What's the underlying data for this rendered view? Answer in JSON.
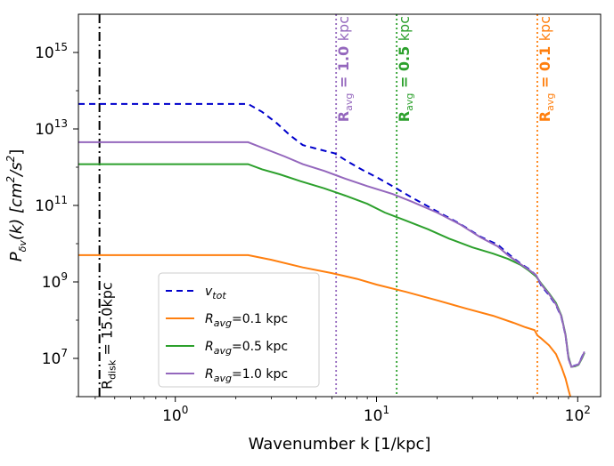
{
  "chart_data": {
    "type": "line",
    "title": "",
    "xscale": "log",
    "yscale": "log",
    "xlim": [
      0.33,
      130
    ],
    "ylim": [
      1000000.0,
      1e+16
    ],
    "x_ticks": [
      {
        "value": 1,
        "base": "10",
        "exp": "0"
      },
      {
        "value": 10,
        "base": "10",
        "exp": "1"
      },
      {
        "value": 100,
        "base": "10",
        "exp": "2"
      }
    ],
    "y_ticks": [
      {
        "value": 10000000.0,
        "base": "10",
        "exp": "7"
      },
      {
        "value": 1000000000.0,
        "base": "10",
        "exp": "9"
      },
      {
        "value": 100000000000.0,
        "base": "10",
        "exp": "11"
      },
      {
        "value": 10000000000000.0,
        "base": "10",
        "exp": "13"
      },
      {
        "value": 1000000000000000.0,
        "base": "10",
        "exp": "15"
      }
    ],
    "xlabel": "Wavenumber k [1/kpc]",
    "ylabel": {
      "main": "P",
      "sub": "δv",
      "rest": "(k) [cm",
      "sup": "2",
      "rest2": "/s",
      "sup2": "2",
      "end": "]"
    },
    "series": [
      {
        "name": "v_tot",
        "legend": {
          "main": "v",
          "sub": "tot",
          "rest": ""
        },
        "color": "#0000cc",
        "dash": "7,5",
        "points": [
          [
            0.33,
            45000000000000.0
          ],
          [
            2.3,
            45000000000000.0
          ],
          [
            2.7,
            28000000000000.0
          ],
          [
            3.2,
            14000000000000.0
          ],
          [
            3.7,
            7000000000000.0
          ],
          [
            4.3,
            3800000000000.0
          ],
          [
            5.2,
            2900000000000.0
          ],
          [
            6.2,
            2300000000000.0
          ],
          [
            7.2,
            1400000000000.0
          ],
          [
            8.5,
            850000000000.0
          ],
          [
            10,
            550000000000.0
          ],
          [
            12,
            320000000000.0
          ],
          [
            15,
            160000000000.0
          ],
          [
            20,
            70000000000.0
          ],
          [
            26,
            33000000000.0
          ],
          [
            33,
            15000000000.0
          ],
          [
            40,
            9500000000.0
          ],
          [
            45,
            5500000000.0
          ],
          [
            52,
            3000000000.0
          ],
          [
            57,
            2200000000.0
          ],
          [
            62,
            1500000000.0
          ],
          [
            66,
            800000000.0
          ],
          [
            72,
            450000000.0
          ],
          [
            78,
            250000000.0
          ],
          [
            83,
            120000000.0
          ],
          [
            87,
            40000000.0
          ],
          [
            90,
            10000000.0
          ],
          [
            93,
            6000000.0
          ],
          [
            97,
            6500000.0
          ],
          [
            101,
            7000000.0
          ],
          [
            105,
            11000000.0
          ],
          [
            108,
            15000000.0
          ]
        ]
      },
      {
        "name": "R_avg=0.1 kpc",
        "legend": {
          "main": "R",
          "sub": "avg",
          "rest": "=0.1 kpc"
        },
        "color": "#ff7f0e",
        "dash": "",
        "points": [
          [
            0.33,
            5000000000.0
          ],
          [
            2.3,
            5000000000.0
          ],
          [
            3,
            3800000000.0
          ],
          [
            4.3,
            2400000000.0
          ],
          [
            6,
            1700000000.0
          ],
          [
            8,
            1200000000.0
          ],
          [
            10,
            850000000.0
          ],
          [
            14,
            550000000.0
          ],
          [
            20,
            330000000.0
          ],
          [
            28,
            200000000.0
          ],
          [
            38,
            130000000.0
          ],
          [
            48,
            85000000.0
          ],
          [
            55,
            65000000.0
          ],
          [
            61,
            55000000.0
          ],
          [
            63,
            40000000.0
          ],
          [
            66,
            33000000.0
          ],
          [
            72,
            22000000.0
          ],
          [
            78,
            13000000.0
          ],
          [
            83,
            6000000.0
          ],
          [
            87,
            3000000.0
          ],
          [
            90,
            1500000.0
          ],
          [
            93,
            800000.0
          ]
        ]
      },
      {
        "name": "R_avg=0.5 kpc",
        "legend": {
          "main": "R",
          "sub": "avg",
          "rest": "=0.5 kpc"
        },
        "color": "#2ca02c",
        "dash": "",
        "points": [
          [
            0.33,
            1200000000000.0
          ],
          [
            2.3,
            1200000000000.0
          ],
          [
            2.7,
            880000000000.0
          ],
          [
            3.3,
            650000000000.0
          ],
          [
            4.2,
            430000000000.0
          ],
          [
            5.5,
            280000000000.0
          ],
          [
            7,
            180000000000.0
          ],
          [
            9,
            110000000000.0
          ],
          [
            11,
            65000000000.0
          ],
          [
            14,
            40000000000.0
          ],
          [
            18,
            24000000000.0
          ],
          [
            23,
            13500000000.0
          ],
          [
            30,
            8000000000.0
          ],
          [
            38,
            5500000000.0
          ],
          [
            45,
            4000000000.0
          ],
          [
            52,
            2800000000.0
          ],
          [
            57,
            2000000000.0
          ],
          [
            62,
            1400000000.0
          ],
          [
            66,
            900000000.0
          ],
          [
            72,
            500000000.0
          ],
          [
            78,
            280000000.0
          ],
          [
            83,
            130000000.0
          ],
          [
            87,
            42000000.0
          ],
          [
            90,
            11000000.0
          ],
          [
            93,
            6000000.0
          ],
          [
            97,
            6200000.0
          ],
          [
            101,
            6800000.0
          ],
          [
            105,
            10000000.0
          ],
          [
            108,
            14000000.0
          ]
        ]
      },
      {
        "name": "R_avg=1.0 kpc",
        "legend": {
          "main": "R",
          "sub": "avg",
          "rest": "=1.0 kpc"
        },
        "color": "#9467bd",
        "dash": "",
        "points": [
          [
            0.33,
            4500000000000.0
          ],
          [
            2.3,
            4500000000000.0
          ],
          [
            2.8,
            3000000000000.0
          ],
          [
            3.5,
            1900000000000.0
          ],
          [
            4.3,
            1200000000000.0
          ],
          [
            5.5,
            800000000000.0
          ],
          [
            7,
            500000000000.0
          ],
          [
            9,
            320000000000.0
          ],
          [
            12,
            200000000000.0
          ],
          [
            15,
            125000000000.0
          ],
          [
            20,
            65000000000.0
          ],
          [
            26,
            32000000000.0
          ],
          [
            33,
            14500000000.0
          ],
          [
            40,
            8500000000.0
          ],
          [
            45,
            5000000000.0
          ],
          [
            52,
            2900000000.0
          ],
          [
            57,
            2100000000.0
          ],
          [
            62,
            1500000000.0
          ],
          [
            66,
            850000000.0
          ],
          [
            72,
            480000000.0
          ],
          [
            78,
            260000000.0
          ],
          [
            83,
            125000000.0
          ],
          [
            87,
            40000000.0
          ],
          [
            90,
            10000000.0
          ],
          [
            93,
            6000000.0
          ],
          [
            97,
            6400000.0
          ],
          [
            101,
            7000000.0
          ],
          [
            105,
            10500000.0
          ],
          [
            108,
            15000000.0
          ]
        ]
      }
    ],
    "vlines": [
      {
        "x": 0.42,
        "color": "#000000",
        "dash": "10,4,2,4",
        "label": {
          "main": "R",
          "sub": "disk",
          "rest": " = 15.0kpc"
        },
        "label_color": "#000000",
        "label_bold": false,
        "label_anchor": "low"
      },
      {
        "x": 6.3,
        "color": "#9467bd",
        "dash": "2,3",
        "label": {
          "main": "R",
          "sub": "avg",
          "rest": " = 1.0 ",
          "unit": "kpc"
        },
        "label_color": "#9467bd",
        "label_bold": true,
        "label_anchor": "top"
      },
      {
        "x": 12.6,
        "color": "#2ca02c",
        "dash": "2,3",
        "label": {
          "main": "R",
          "sub": "avg",
          "rest": " = 0.5 ",
          "unit": "kpc"
        },
        "label_color": "#2ca02c",
        "label_bold": true,
        "label_anchor": "top"
      },
      {
        "x": 63,
        "color": "#ff7f0e",
        "dash": "2,3",
        "label": {
          "main": "R",
          "sub": "avg",
          "rest": " = 0.1 ",
          "unit": "kpc"
        },
        "label_color": "#ff7f0e",
        "label_bold": true,
        "label_anchor": "top"
      }
    ],
    "legend_position": "lower-left"
  }
}
